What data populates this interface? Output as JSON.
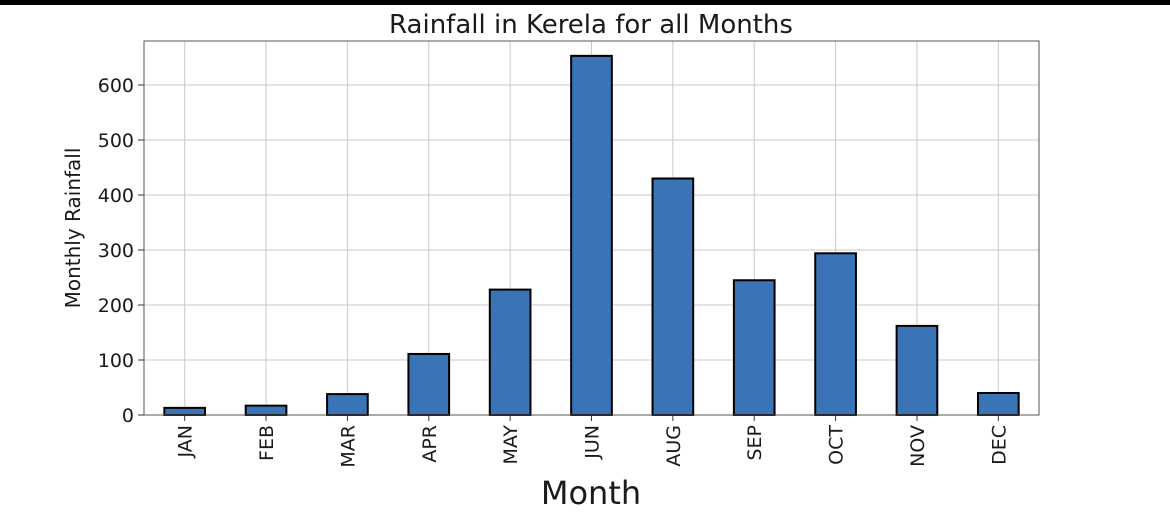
{
  "chart_data": {
    "type": "bar",
    "title": "Rainfall in Kerela for all Months",
    "xlabel": "Month",
    "ylabel": "Monthly Rainfall",
    "categories": [
      "JAN",
      "FEB",
      "MAR",
      "APR",
      "MAY",
      "JUN",
      "AUG",
      "SEP",
      "OCT",
      "NOV",
      "DEC"
    ],
    "values": [
      13,
      17,
      38,
      111,
      228,
      653,
      430,
      245,
      294,
      162,
      40
    ],
    "ylim": [
      0,
      680
    ],
    "yticks": [
      0,
      100,
      200,
      300,
      400,
      500,
      600
    ],
    "grid": true,
    "bar_color": "#3a74b6",
    "edge_color": "#000000"
  }
}
